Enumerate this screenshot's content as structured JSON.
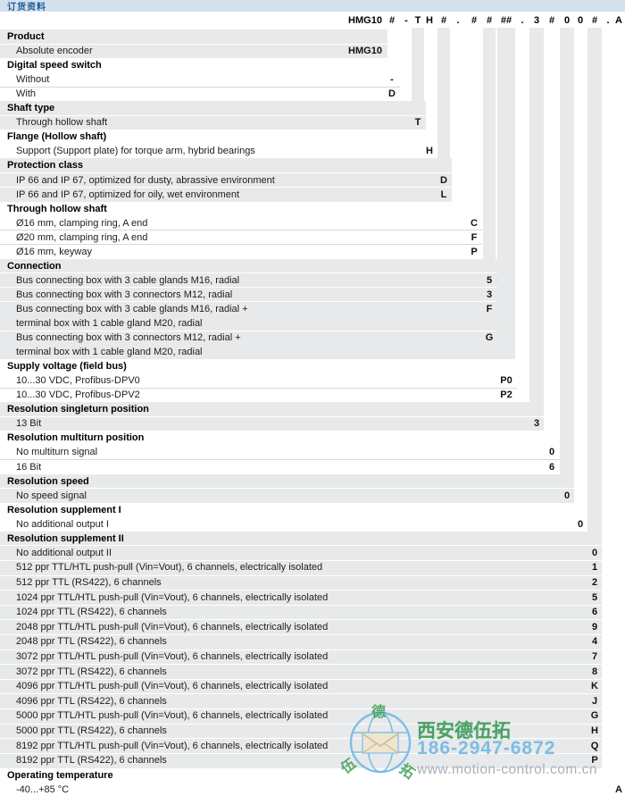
{
  "title_bar": {
    "text": "订货资料"
  },
  "order_code": {
    "product_label": "HMG10",
    "columns": [
      {
        "id": "speed_switch",
        "char": "#"
      },
      {
        "id": "dash1",
        "char": "-",
        "literal": true
      },
      {
        "id": "shaft",
        "char": "T"
      },
      {
        "id": "flange",
        "char": "H"
      },
      {
        "id": "protection",
        "char": "#"
      },
      {
        "id": "dot1",
        "char": ".",
        "literal": true
      },
      {
        "id": "hollow",
        "char": "#"
      },
      {
        "id": "connection",
        "char": "#"
      },
      {
        "id": "supply",
        "char": "##"
      },
      {
        "id": "dot2",
        "char": ".",
        "literal": true
      },
      {
        "id": "singleturn",
        "char": "3"
      },
      {
        "id": "multiturn",
        "char": "#"
      },
      {
        "id": "speed",
        "char": "0"
      },
      {
        "id": "suppl1",
        "char": "0"
      },
      {
        "id": "suppl2",
        "char": "#"
      },
      {
        "id": "dot3",
        "char": ".",
        "literal": true
      },
      {
        "id": "temp",
        "char": "A"
      }
    ]
  },
  "sections": [
    {
      "title": "Product",
      "column": "product",
      "shaded": true,
      "options": [
        {
          "label": "Absolute encoder",
          "code": "HMG10"
        }
      ]
    },
    {
      "title": "Digital speed switch",
      "column": "speed_switch",
      "shaded": false,
      "options": [
        {
          "label": "Without",
          "code": "-"
        },
        {
          "label": "With",
          "code": "D"
        }
      ]
    },
    {
      "title": "Shaft type",
      "column": "shaft",
      "shaded": true,
      "options": [
        {
          "label": "Through hollow shaft",
          "code": "T"
        }
      ]
    },
    {
      "title": "Flange (Hollow shaft)",
      "column": "flange",
      "shaded": false,
      "options": [
        {
          "label": "Support (Support plate) for torque arm, hybrid bearings",
          "code": "H"
        }
      ]
    },
    {
      "title": "Protection class",
      "column": "protection",
      "shaded": true,
      "options": [
        {
          "label": "IP 66 and IP 67, optimized for dusty, abrassive environment",
          "code": "D"
        },
        {
          "label": "IP 66 and IP 67, optimized for oily, wet environment",
          "code": "L"
        }
      ]
    },
    {
      "title": "Through hollow shaft",
      "column": "hollow",
      "shaded": false,
      "options": [
        {
          "label": "Ø16 mm, clamping ring, A end",
          "code": "C"
        },
        {
          "label": "Ø20 mm, clamping ring, A end",
          "code": "F"
        },
        {
          "label": "Ø16 mm, keyway",
          "code": "P"
        }
      ]
    },
    {
      "title": "Connection",
      "column": "connection",
      "shaded": true,
      "options": [
        {
          "label": "Bus connecting box with 3 cable glands M16, radial",
          "code": "5"
        },
        {
          "label": "Bus connecting box with 3 connectors M12, radial",
          "code": "3"
        },
        {
          "label": "Bus connecting box with 3 cable glands M16, radial +\nterminal box with 1 cable gland M20, radial",
          "code": "F",
          "lines": 2
        },
        {
          "label": "Bus connecting box with 3 connectors M12, radial +\nterminal box with 1 cable gland M20, radial",
          "code": "G",
          "lines": 2
        }
      ]
    },
    {
      "title": "Supply voltage (field bus)",
      "column": "supply",
      "shaded": false,
      "options": [
        {
          "label": "10...30 VDC, Profibus-DPV0",
          "code": "P0"
        },
        {
          "label": "10...30 VDC, Profibus-DPV2",
          "code": "P2"
        }
      ]
    },
    {
      "title": "Resolution singleturn position",
      "column": "singleturn",
      "shaded": true,
      "options": [
        {
          "label": "13 Bit",
          "code": "3"
        }
      ]
    },
    {
      "title": "Resolution multiturn position",
      "column": "multiturn",
      "shaded": false,
      "options": [
        {
          "label": "No multiturn signal",
          "code": "0"
        },
        {
          "label": "16 Bit",
          "code": "6"
        }
      ]
    },
    {
      "title": "Resolution speed",
      "column": "speed",
      "shaded": true,
      "options": [
        {
          "label": "No speed signal",
          "code": "0"
        }
      ]
    },
    {
      "title": "Resolution supplement I",
      "column": "suppl1",
      "shaded": false,
      "options": [
        {
          "label": "No additional output I",
          "code": "0"
        }
      ]
    },
    {
      "title": "Resolution supplement II",
      "column": "suppl2",
      "shaded": true,
      "compact": true,
      "options": [
        {
          "label": "No additional output II",
          "code": "0"
        },
        {
          "label": "512 ppr TTL/HTL push-pull (Vin=Vout), 6 channels, electrically isolated",
          "code": "1"
        },
        {
          "label": "512 ppr TTL (RS422), 6 channels",
          "code": "2"
        },
        {
          "label": "1024 ppr TTL/HTL push-pull (Vin=Vout), 6 channels, electrically isolated",
          "code": "5"
        },
        {
          "label": "1024 ppr TTL (RS422), 6 channels",
          "code": "6"
        },
        {
          "label": "2048 ppr TTL/HTL push-pull (Vin=Vout), 6 channels, electrically isolated",
          "code": "9"
        },
        {
          "label": "2048 ppr TTL (RS422), 6 channels",
          "code": "4"
        },
        {
          "label": "3072 ppr TTL/HTL push-pull (Vin=Vout), 6 channels, electrically isolated",
          "code": "7"
        },
        {
          "label": "3072 ppr TTL (RS422), 6 channels",
          "code": "8"
        },
        {
          "label": "4096 ppr TTL/HTL push-pull (Vin=Vout), 6 channels, electrically isolated",
          "code": "K"
        },
        {
          "label": "4096 ppr TTL (RS422), 6 channels",
          "code": "J"
        },
        {
          "label": "5000 ppr TTL/HTL push-pull (Vin=Vout), 6 channels, electrically isolated",
          "code": "G"
        },
        {
          "label": "5000 ppr TTL (RS422), 6 channels",
          "code": "H"
        },
        {
          "label": "8192 ppr TTL/HTL push-pull (Vin=Vout), 6 channels, electrically isolated",
          "code": "Q"
        },
        {
          "label": "8192 ppr TTL (RS422), 6 channels",
          "code": "P"
        }
      ]
    },
    {
      "title": "Operating temperature",
      "column": "temp",
      "shaded": false,
      "options": [
        {
          "label": "-40...+85 °C",
          "code": "A"
        }
      ]
    }
  ],
  "watermark": {
    "company": "西安德伍拓",
    "phone": "186-2947-6872",
    "website": "www.motion-control.com.cn",
    "seal_chars": [
      "德",
      "伍",
      "拓"
    ],
    "globe_icon": "globe-with-envelope"
  },
  "colors": {
    "title_bar_bg": "#d4e0ed",
    "title_bar_text": "#1e5c9e",
    "row_shade": "#e8e9ea",
    "separator_on_white": "#d8d8d8",
    "separator_on_shade": "#ffffff",
    "watermark_green": "#4aa25e",
    "watermark_blue": "#7cbde6",
    "watermark_gray": "#a5b1ba"
  }
}
